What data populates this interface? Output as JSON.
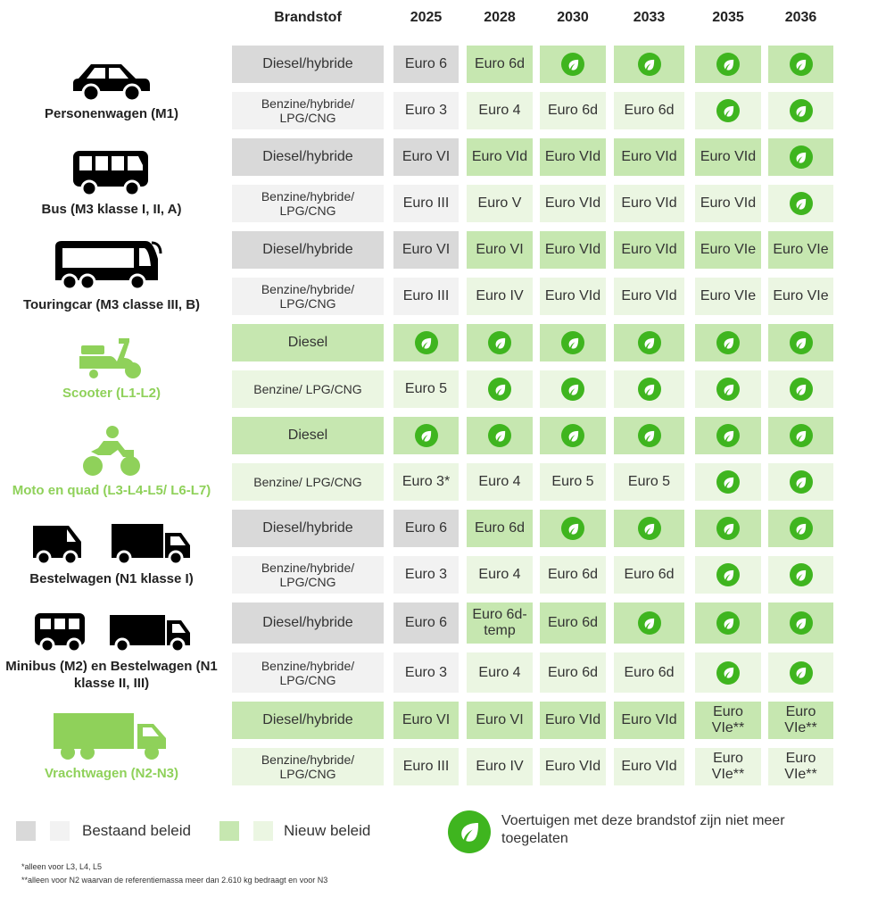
{
  "headers": [
    "Brandstof",
    "2025",
    "2028",
    "2030",
    "2033",
    "2035",
    "2036"
  ],
  "colors": {
    "dark_gray": "#d9d9d9",
    "light_gray": "#f2f2f2",
    "dark_green": "#c6e7b0",
    "light_green": "#ebf6e2",
    "leaf": "#3fb51f",
    "new_category_text": "#8fd15a"
  },
  "groups": [
    {
      "label": "Personenwagen (M1)",
      "icon": "car-icon",
      "new_category": false,
      "rows": [
        {
          "fuel": "Diesel/hybride",
          "shade": "dark",
          "values": [
            "Euro 6",
            "Euro 6d",
            "leaf",
            "leaf",
            "leaf",
            "leaf"
          ]
        },
        {
          "fuel": "Benzine/hybride/ LPG/CNG",
          "shade": "light",
          "values": [
            "Euro 3",
            "Euro 4",
            "Euro 6d",
            "Euro 6d",
            "leaf",
            "leaf"
          ]
        }
      ]
    },
    {
      "label": "Bus (M3 klasse I, II, A)",
      "icon": "bus-icon",
      "new_category": false,
      "rows": [
        {
          "fuel": "Diesel/hybride",
          "shade": "dark",
          "values": [
            "Euro VI",
            "Euro VId",
            "Euro VId",
            "Euro VId",
            "Euro VId",
            "leaf"
          ]
        },
        {
          "fuel": "Benzine/hybride/ LPG/CNG",
          "shade": "light",
          "values": [
            "Euro III",
            "Euro V",
            "Euro VId",
            "Euro VId",
            "Euro VId",
            "leaf"
          ]
        }
      ]
    },
    {
      "label": "Touringcar (M3 classe III, B)",
      "icon": "coach-icon",
      "new_category": false,
      "rows": [
        {
          "fuel": "Diesel/hybride",
          "shade": "dark",
          "values": [
            "Euro VI",
            "Euro VI",
            "Euro VId",
            "Euro VId",
            "Euro VIe",
            "Euro VIe"
          ]
        },
        {
          "fuel": "Benzine/hybride/ LPG/CNG",
          "shade": "light",
          "values": [
            "Euro III",
            "Euro IV",
            "Euro VId",
            "Euro VId",
            "Euro VIe",
            "Euro VIe"
          ]
        }
      ]
    },
    {
      "label": "Scooter (L1-L2)",
      "icon": "scooter-icon",
      "new_category": true,
      "rows": [
        {
          "fuel": "Diesel",
          "shade": "dark",
          "values": [
            "leaf",
            "leaf",
            "leaf",
            "leaf",
            "leaf",
            "leaf"
          ]
        },
        {
          "fuel": "Benzine/ LPG/CNG",
          "shade": "light",
          "values": [
            "Euro 5",
            "leaf",
            "leaf",
            "leaf",
            "leaf",
            "leaf"
          ]
        }
      ]
    },
    {
      "label": "Moto en quad (L3-L4-L5/ L6-L7)",
      "icon": "motorcycle-icon",
      "new_category": true,
      "rows": [
        {
          "fuel": "Diesel",
          "shade": "dark",
          "values": [
            "leaf",
            "leaf",
            "leaf",
            "leaf",
            "leaf",
            "leaf"
          ]
        },
        {
          "fuel": "Benzine/ LPG/CNG",
          "shade": "light",
          "values": [
            "Euro 3*",
            "Euro 4",
            "Euro 5",
            "Euro 5",
            "leaf",
            "leaf"
          ]
        }
      ]
    },
    {
      "label": "Bestelwagen (N1 klasse I)",
      "icon": "van-truck-icon",
      "new_category": false,
      "rows": [
        {
          "fuel": "Diesel/hybride",
          "shade": "dark",
          "values": [
            "Euro 6",
            "Euro 6d",
            "leaf",
            "leaf",
            "leaf",
            "leaf"
          ]
        },
        {
          "fuel": "Benzine/hybride/ LPG/CNG",
          "shade": "light",
          "values": [
            "Euro 3",
            "Euro 4",
            "Euro 6d",
            "Euro 6d",
            "leaf",
            "leaf"
          ]
        }
      ]
    },
    {
      "label": "Minibus (M2) en Bestelwagen (N1 klasse II, III)",
      "icon": "minibus-truck-icon",
      "new_category": false,
      "rows": [
        {
          "fuel": "Diesel/hybride",
          "shade": "dark",
          "values": [
            "Euro 6",
            "Euro 6d- temp",
            "Euro 6d",
            "leaf",
            "leaf",
            "leaf"
          ]
        },
        {
          "fuel": "Benzine/hybride/ LPG/CNG",
          "shade": "light",
          "values": [
            "Euro 3",
            "Euro 4",
            "Euro 6d",
            "Euro 6d",
            "leaf",
            "leaf"
          ]
        }
      ]
    },
    {
      "label": "Vrachtwagen (N2-N3)",
      "icon": "lorry-icon",
      "new_category": true,
      "all_new": true,
      "rows": [
        {
          "fuel": "Diesel/hybride",
          "shade": "dark",
          "values": [
            "Euro VI",
            "Euro VI",
            "Euro VId",
            "Euro VId",
            "Euro VIe**",
            "Euro VIe**"
          ]
        },
        {
          "fuel": "Benzine/hybride/ LPG/CNG",
          "shade": "light",
          "values": [
            "Euro III",
            "Euro IV",
            "Euro VId",
            "Euro VId",
            "Euro VIe**",
            "Euro VIe**"
          ]
        }
      ]
    }
  ],
  "legend": {
    "existing": "Bestaand beleid",
    "new": "Nieuw beleid",
    "leaf": "Voertuigen met deze brandstof zijn niet meer toegelaten"
  },
  "footnotes": [
    "*alleen voor L3, L4, L5",
    "**alleen voor N2 waarvan de referentiemassa meer dan 2.610 kg bedraagt en voor N3"
  ]
}
